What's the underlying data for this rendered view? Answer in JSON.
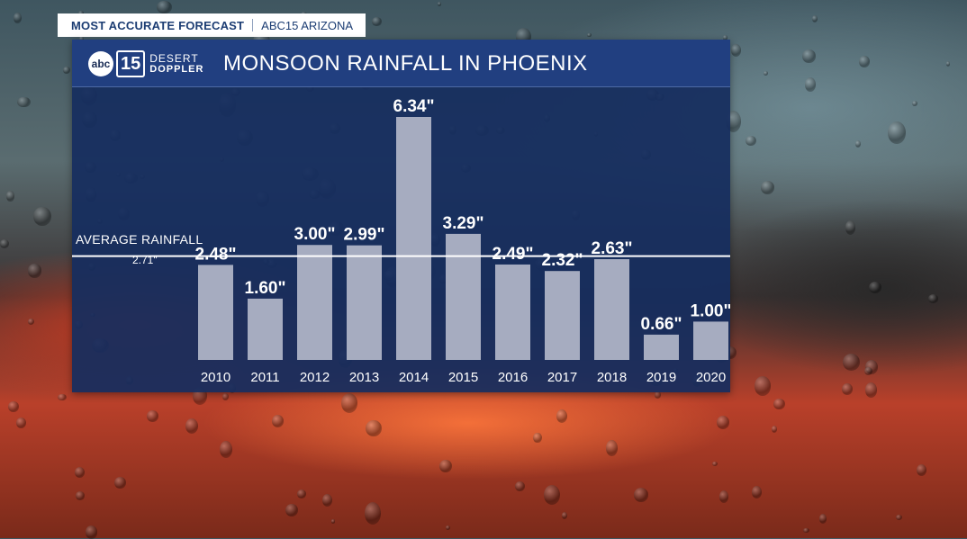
{
  "banner": {
    "left_text": "MOST ACCURATE FORECAST",
    "right_text": "ABC15 ARIZONA"
  },
  "logo": {
    "abc": "abc",
    "number": "15",
    "line1": "DESERT",
    "line2": "DOPPLER"
  },
  "chart_data": {
    "type": "bar",
    "title": "MONSOON RAINFALL IN PHOENIX",
    "categories": [
      "2010",
      "2011",
      "2012",
      "2013",
      "2014",
      "2015",
      "2016",
      "2017",
      "2018",
      "2019",
      "2020"
    ],
    "values": [
      2.48,
      1.6,
      3.0,
      2.99,
      6.34,
      3.29,
      2.49,
      2.32,
      2.63,
      0.66,
      1.0
    ],
    "value_labels": [
      "2.48\"",
      "1.60\"",
      "3.00\"",
      "2.99\"",
      "6.34\"",
      "3.29\"",
      "2.49\"",
      "2.32\"",
      "2.63\"",
      "0.66\"",
      "1.00\""
    ],
    "reference_line": {
      "label": "AVERAGE RAINFALL",
      "value_label": "2.71\"",
      "value": 2.71
    },
    "xlabel": "",
    "ylabel": "",
    "ylim": [
      0,
      6.34
    ],
    "grid": false,
    "colors": {
      "bar": "#a6acc0",
      "background": "#162d5f",
      "header": "#213f80",
      "text": "#ffffff"
    }
  }
}
